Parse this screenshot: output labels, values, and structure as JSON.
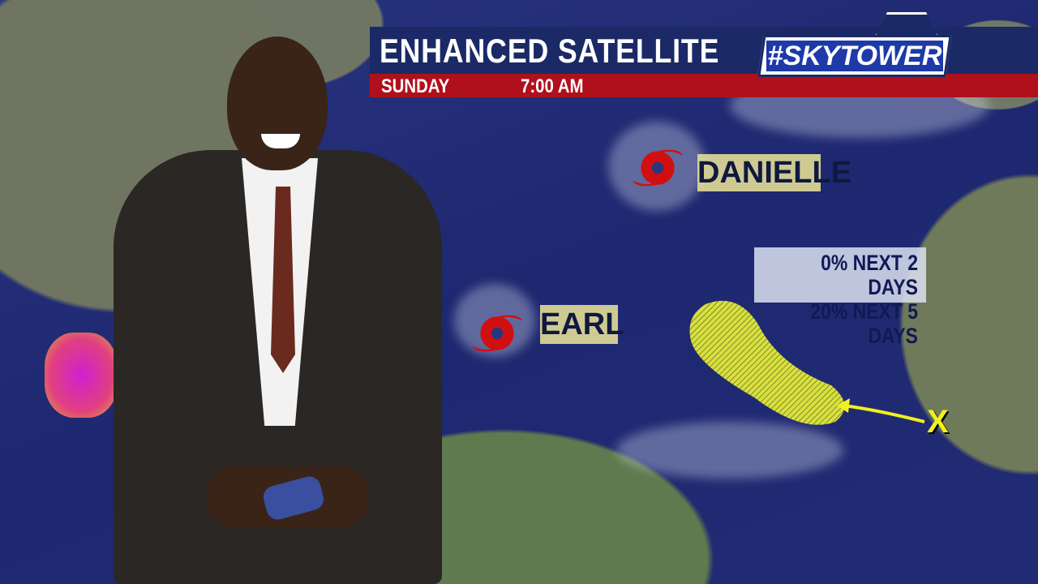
{
  "banner": {
    "title": "ENHANCED SATELLITE",
    "day": "SUNDAY",
    "time": "7:00 AM",
    "logo": "#SKYTOWER"
  },
  "storms": [
    {
      "name": "DANIELLE",
      "icon": "hurricane-icon"
    },
    {
      "name": "EARL",
      "icon": "hurricane-icon"
    }
  ],
  "outlook": {
    "line1": "0% NEXT 2 DAYS",
    "line2": "20% NEXT 5 DAYS",
    "marker": "X",
    "area_color": "#d8e040",
    "arrow_color": "#f0f020"
  },
  "colors": {
    "banner_blue": "#1b2a66",
    "banner_red": "#b0101c",
    "storm_red": "#d01010"
  }
}
